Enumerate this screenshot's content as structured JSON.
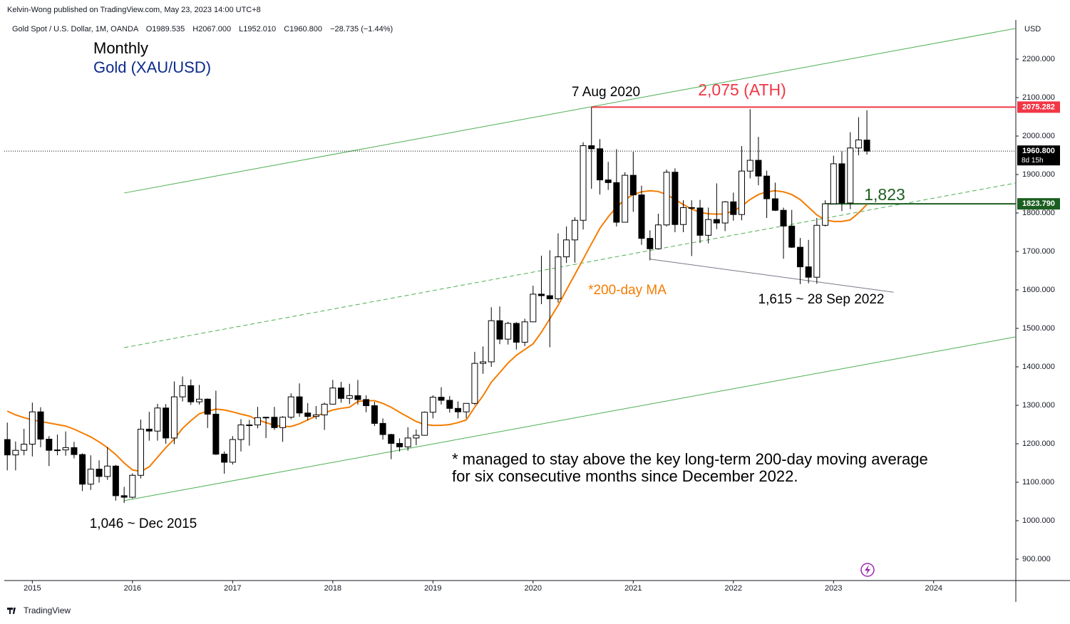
{
  "header": {
    "published": "Kelvin-Wong published on TradingView.com, May 23, 2023 14:00 UTC+8",
    "symbol": "Gold Spot / U.S. Dollar, 1M, OANDA",
    "ohlc": [
      "O1989.535",
      "H2067.000",
      "L1952.010",
      "C1960.800",
      "−28.735 (−1.44%)"
    ]
  },
  "footer": "TradingView",
  "chart_data": {
    "type": "candlestick",
    "title": "Monthly",
    "subtitle": "Gold (XAU/USD)",
    "y_unit": "USD",
    "up_color": "#ffffff",
    "down_color": "#000000",
    "edge_color": "#000000",
    "x": [
      2014.75,
      2014.833,
      2014.917,
      2015,
      2015.083,
      2015.167,
      2015.25,
      2015.333,
      2015.417,
      2015.5,
      2015.583,
      2015.667,
      2015.75,
      2015.833,
      2015.917,
      2016,
      2016.083,
      2016.167,
      2016.25,
      2016.333,
      2016.417,
      2016.5,
      2016.583,
      2016.667,
      2016.75,
      2016.833,
      2016.917,
      2017,
      2017.083,
      2017.167,
      2017.25,
      2017.333,
      2017.417,
      2017.5,
      2017.583,
      2017.667,
      2017.75,
      2017.833,
      2017.917,
      2018,
      2018.083,
      2018.167,
      2018.25,
      2018.333,
      2018.417,
      2018.5,
      2018.583,
      2018.667,
      2018.75,
      2018.833,
      2018.917,
      2019,
      2019.083,
      2019.167,
      2019.25,
      2019.333,
      2019.417,
      2019.5,
      2019.583,
      2019.667,
      2019.75,
      2019.833,
      2019.917,
      2020,
      2020.083,
      2020.167,
      2020.25,
      2020.333,
      2020.417,
      2020.5,
      2020.583,
      2020.667,
      2020.75,
      2020.833,
      2020.917,
      2021,
      2021.083,
      2021.167,
      2021.25,
      2021.333,
      2021.417,
      2021.5,
      2021.583,
      2021.667,
      2021.75,
      2021.833,
      2021.917,
      2022,
      2022.083,
      2022.167,
      2022.25,
      2022.333,
      2022.417,
      2022.5,
      2022.583,
      2022.667,
      2022.75,
      2022.833,
      2022.917,
      2023,
      2023.083,
      2023.167,
      2023.25,
      2023.333
    ],
    "open": [
      1211,
      1171,
      1183,
      1199,
      1283,
      1212,
      1183,
      1184,
      1190,
      1172,
      1095,
      1134,
      1115,
      1142,
      1065,
      1061,
      1118,
      1238,
      1233,
      1293,
      1215,
      1322,
      1351,
      1309,
      1316,
      1277,
      1173,
      1152,
      1211,
      1249,
      1249,
      1268,
      1269,
      1242,
      1269,
      1322,
      1280,
      1271,
      1275,
      1303,
      1345,
      1318,
      1325,
      1315,
      1299,
      1253,
      1224,
      1201,
      1192,
      1215,
      1222,
      1282,
      1321,
      1313,
      1292,
      1283,
      1305,
      1409,
      1413,
      1520,
      1472,
      1513,
      1464,
      1517,
      1589,
      1585,
      1577,
      1686,
      1730,
      1781,
      1975,
      1967,
      1886,
      1879,
      1776,
      1898,
      1847,
      1734,
      1707,
      1769,
      1906,
      1770,
      1814,
      1813,
      1742,
      1783,
      1774,
      1829,
      1796,
      1909,
      1937,
      1896,
      1837,
      1807,
      1766,
      1711,
      1660,
      1633,
      1768,
      1824,
      1928,
      1826,
      1969,
      1989.535
    ],
    "high": [
      1255,
      1206,
      1239,
      1307,
      1295,
      1220,
      1224,
      1232,
      1205,
      1175,
      1170,
      1157,
      1191,
      1145,
      1088,
      1123,
      1263,
      1283,
      1304,
      1303,
      1362,
      1375,
      1367,
      1353,
      1318,
      1338,
      1180,
      1220,
      1264,
      1262,
      1296,
      1270,
      1296,
      1272,
      1331,
      1357,
      1306,
      1298,
      1307,
      1366,
      1361,
      1356,
      1366,
      1326,
      1309,
      1266,
      1226,
      1214,
      1243,
      1237,
      1284,
      1326,
      1347,
      1324,
      1310,
      1305,
      1439,
      1453,
      1555,
      1557,
      1517,
      1516,
      1525,
      1611,
      1689,
      1703,
      1747,
      1765,
      1789,
      1984,
      2075,
      1992,
      1933,
      1966,
      1906,
      1959,
      1871,
      1755,
      1798,
      1913,
      1916,
      1833,
      1833,
      1834,
      1814,
      1877,
      1831,
      1853,
      1974,
      2070,
      1998,
      1910,
      1879,
      1814,
      1808,
      1735,
      1730,
      1787,
      1833,
      1949,
      1960,
      2010,
      2049,
      2067
    ],
    "low": [
      1131,
      1131,
      1170,
      1167,
      1191,
      1142,
      1170,
      1169,
      1162,
      1077,
      1080,
      1099,
      1106,
      1052,
      1046,
      1058,
      1110,
      1208,
      1208,
      1200,
      1199,
      1310,
      1301,
      1302,
      1241,
      1171,
      1122,
      1146,
      1180,
      1195,
      1240,
      1215,
      1236,
      1205,
      1264,
      1270,
      1261,
      1264,
      1236,
      1302,
      1307,
      1303,
      1302,
      1282,
      1246,
      1211,
      1160,
      1180,
      1182,
      1196,
      1221,
      1266,
      1302,
      1281,
      1266,
      1266,
      1301,
      1382,
      1400,
      1459,
      1458,
      1445,
      1454,
      1517,
      1563,
      1451,
      1567,
      1670,
      1671,
      1757,
      1863,
      1848,
      1860,
      1765,
      1776,
      1803,
      1717,
      1677,
      1705,
      1765,
      1750,
      1750,
      1688,
      1722,
      1721,
      1758,
      1753,
      1780,
      1781,
      1890,
      1872,
      1787,
      1805,
      1681,
      1709,
      1615,
      1617,
      1616,
      1765,
      1823,
      1805,
      1810,
      1950,
      1952.01
    ],
    "close": [
      1171,
      1183,
      1199,
      1283,
      1212,
      1183,
      1184,
      1190,
      1172,
      1095,
      1134,
      1115,
      1142,
      1065,
      1061,
      1118,
      1238,
      1233,
      1293,
      1215,
      1322,
      1351,
      1309,
      1316,
      1277,
      1173,
      1152,
      1211,
      1249,
      1249,
      1268,
      1269,
      1242,
      1269,
      1322,
      1280,
      1271,
      1275,
      1303,
      1345,
      1318,
      1325,
      1315,
      1299,
      1253,
      1224,
      1201,
      1192,
      1215,
      1222,
      1282,
      1321,
      1313,
      1292,
      1283,
      1305,
      1409,
      1413,
      1520,
      1472,
      1513,
      1464,
      1517,
      1589,
      1585,
      1577,
      1686,
      1730,
      1781,
      1975,
      1967,
      1886,
      1879,
      1776,
      1898,
      1847,
      1734,
      1707,
      1769,
      1906,
      1770,
      1814,
      1813,
      1742,
      1783,
      1774,
      1829,
      1796,
      1909,
      1937,
      1896,
      1837,
      1807,
      1766,
      1711,
      1660,
      1633,
      1768,
      1824,
      1928,
      1826,
      1969,
      1990,
      1960.8
    ],
    "series": [
      {
        "name": "*200-day MA",
        "color": "#f57c00",
        "values": [
          1285,
          1275,
          1268,
          1262,
          1258,
          1254,
          1250,
          1246,
          1238,
          1228,
          1218,
          1205,
          1190,
          1172,
          1150,
          1132,
          1128,
          1140,
          1165,
          1190,
          1212,
          1240,
          1260,
          1278,
          1285,
          1290,
          1288,
          1283,
          1277,
          1272,
          1262,
          1255,
          1248,
          1245,
          1245,
          1252,
          1262,
          1272,
          1280,
          1288,
          1292,
          1295,
          1310,
          1312,
          1312,
          1305,
          1295,
          1282,
          1270,
          1258,
          1250,
          1248,
          1248,
          1250,
          1255,
          1262,
          1295,
          1325,
          1360,
          1385,
          1410,
          1430,
          1445,
          1460,
          1490,
          1525,
          1560,
          1600,
          1640,
          1680,
          1720,
          1760,
          1790,
          1815,
          1835,
          1848,
          1855,
          1858,
          1856,
          1848,
          1835,
          1822,
          1810,
          1802,
          1798,
          1797,
          1798,
          1805,
          1818,
          1835,
          1848,
          1855,
          1858,
          1855,
          1848,
          1835,
          1815,
          1795,
          1782,
          1778,
          1778,
          1782,
          1800,
          1822
        ]
      }
    ],
    "trendlines": [
      {
        "x": [
          2015.917,
          2024.82
        ],
        "y": [
          1852,
          2280
        ],
        "color": "#4caf50",
        "style": "solid"
      },
      {
        "x": [
          2015.917,
          2024.82
        ],
        "y": [
          1052,
          1478
        ],
        "color": "#4caf50",
        "style": "solid"
      },
      {
        "x": [
          2015.917,
          2024.82
        ],
        "y": [
          1450,
          1878
        ],
        "color": "#4caf50",
        "style": "dashed"
      },
      {
        "x": [
          2021.167,
          2023.6
        ],
        "y": [
          1680,
          1594
        ],
        "color": "#787b86",
        "style": "solid"
      }
    ],
    "price_lines": [
      {
        "value": 2075.282,
        "from": 2020.583,
        "color": "#f23645",
        "style": "solid"
      },
      {
        "value": 1960.8,
        "label": "1960.800",
        "from": 2014.72,
        "color": "#000000",
        "style": "dotted",
        "countdown": "8d 15h"
      },
      {
        "value": 1823.79,
        "label": "1823.790",
        "from": 2022.917,
        "color": "#1b5e20",
        "style": "solid"
      }
    ],
    "annotations": [
      "7 Aug 2020",
      "2,075 (ATH)",
      "1,823",
      "1,615 ~ 28 Sep 2022",
      "1,046 ~ Dec 2015",
      "* managed to stay above the key long-term 200-day moving average",
      "for six consecutive months since December 2022."
    ],
    "xlim": [
      2014.72,
      2024.82
    ],
    "xticks": [
      2015,
      2016,
      2017,
      2018,
      2019,
      2020,
      2021,
      2022,
      2023,
      2024
    ],
    "ylim": [
      844.4,
      2301.9
    ],
    "yticks": [
      {
        "value": 900,
        "label": "900.000"
      },
      {
        "value": 1000,
        "label": "1000.000"
      },
      {
        "value": 1100,
        "label": "1100.000"
      },
      {
        "value": 1200,
        "label": "1200.000"
      },
      {
        "value": 1300,
        "label": "1300.000"
      },
      {
        "value": 1400,
        "label": "1400.000"
      },
      {
        "value": 1500,
        "label": "1500.000"
      },
      {
        "value": 1600,
        "label": "1600.000"
      },
      {
        "value": 1700,
        "label": "1700.000"
      },
      {
        "value": 1800,
        "label": "1800.000"
      },
      {
        "value": 1900,
        "label": "1900.000"
      },
      {
        "value": 2000,
        "label": "2000.000"
      },
      {
        "value": 2100,
        "label": "2100.000"
      },
      {
        "value": 2200,
        "label": "2200.000"
      }
    ]
  }
}
